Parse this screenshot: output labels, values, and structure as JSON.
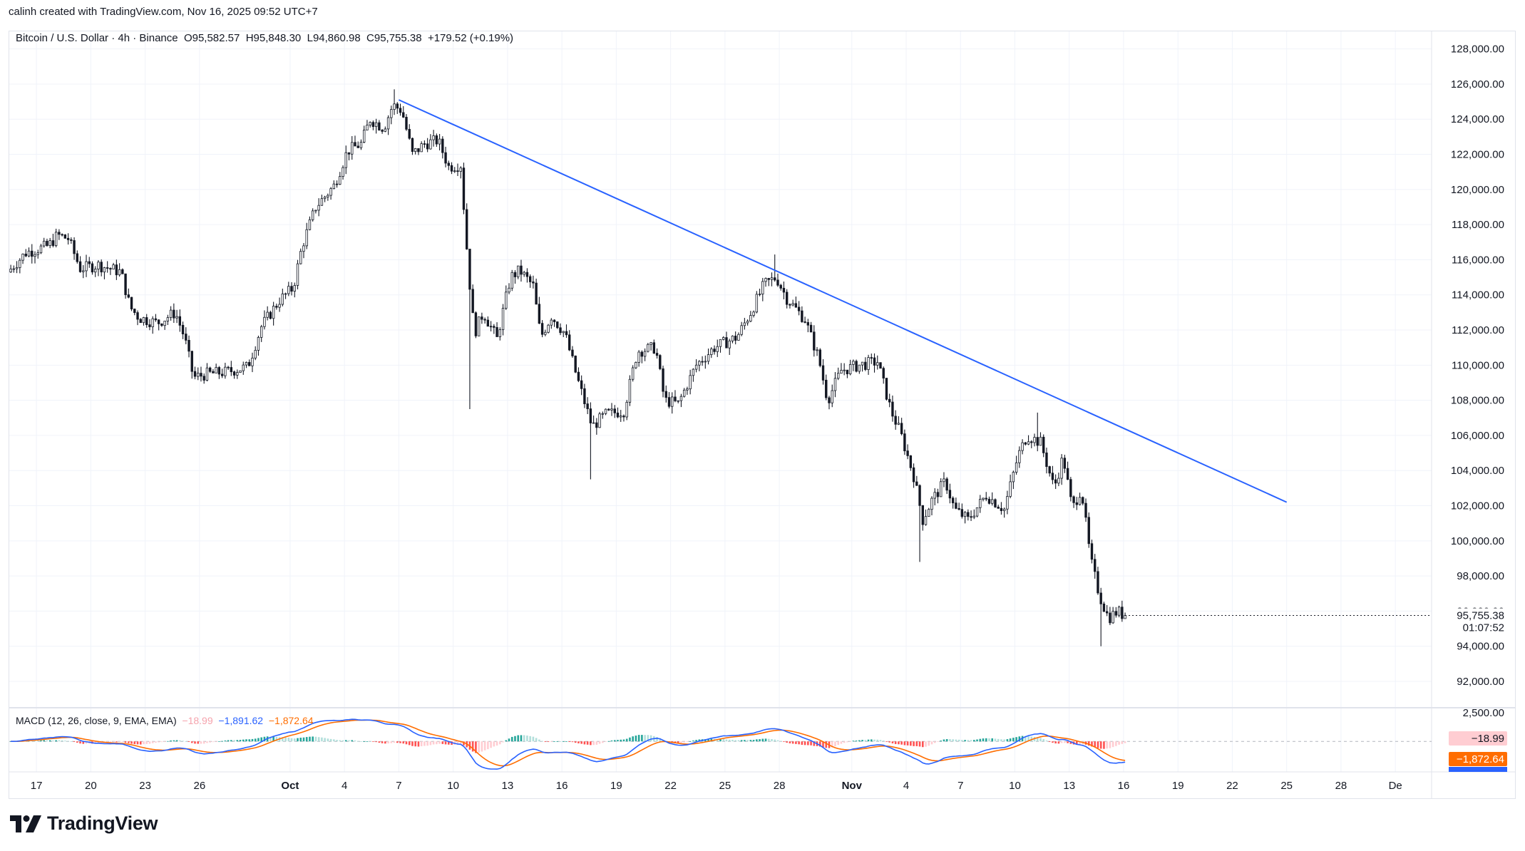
{
  "header": {
    "attribution": "calinh created with TradingView.com, Nov 16, 2025 09:52 UTC+7"
  },
  "legend": {
    "symbol": "Bitcoin / U.S. Dollar · 4h · Binance",
    "open": "O95,582.57",
    "high": "H95,848.30",
    "low": "L94,860.98",
    "close": "C95,755.38",
    "change": "+179.52 (+0.19%)"
  },
  "macd_legend": {
    "label": "MACD (12, 26, close, 9, EMA, EMA)",
    "histogram": "−18.99",
    "macd": "−1,891.62",
    "signal": "−1,872.64"
  },
  "price_badge": {
    "price": "95,755.38",
    "countdown": "01:07:52"
  },
  "macd_badges": {
    "histogram": "−18.99",
    "signal": "−1,872.64",
    "macd": "−1,891.62"
  },
  "colors": {
    "candle": "#131722",
    "trendline": "#2962ff",
    "macd_line": "#2962ff",
    "signal_line": "#ff6d00",
    "hist_pos_strong": "#26a69a",
    "hist_pos_weak": "#b2dfdb",
    "hist_neg_strong": "#ff5252",
    "hist_neg_weak": "#ffcdd2",
    "grid": "#f0f3fa"
  },
  "logo": {
    "text": "TradingView"
  },
  "chart_data": {
    "type": "candlestick",
    "symbol": "Bitcoin / U.S. Dollar",
    "interval": "4h",
    "y_axis": {
      "range": [
        90500,
        129000
      ],
      "ticks": [
        92000,
        94000,
        96000,
        98000,
        100000,
        102000,
        104000,
        106000,
        108000,
        110000,
        112000,
        114000,
        116000,
        118000,
        120000,
        122000,
        124000,
        126000,
        128000
      ],
      "tick_labels": [
        "92,000.00",
        "94,000.00",
        "96,000.00",
        "98,000.00",
        "100,000.00",
        "102,000.00",
        "104,000.00",
        "106,000.00",
        "108,000.00",
        "110,000.00",
        "112,000.00",
        "114,000.00",
        "116,000.00",
        "118,000.00",
        "120,000.00",
        "122,000.00",
        "124,000.00",
        "126,000.00",
        "128,000.00"
      ]
    },
    "x_axis": {
      "range": [
        "2025-09-15T12:00",
        "2025-12-03T00:00"
      ],
      "ticks": [
        {
          "date": "2025-09-17",
          "label": "17"
        },
        {
          "date": "2025-09-20",
          "label": "20"
        },
        {
          "date": "2025-09-23",
          "label": "23"
        },
        {
          "date": "2025-09-26",
          "label": "26"
        },
        {
          "date": "2025-10-01",
          "label": "Oct"
        },
        {
          "date": "2025-10-04",
          "label": "4"
        },
        {
          "date": "2025-10-07",
          "label": "7"
        },
        {
          "date": "2025-10-10",
          "label": "10"
        },
        {
          "date": "2025-10-13",
          "label": "13"
        },
        {
          "date": "2025-10-16",
          "label": "16"
        },
        {
          "date": "2025-10-19",
          "label": "19"
        },
        {
          "date": "2025-10-22",
          "label": "22"
        },
        {
          "date": "2025-10-25",
          "label": "25"
        },
        {
          "date": "2025-10-28",
          "label": "28"
        },
        {
          "date": "2025-11-01",
          "label": "Nov"
        },
        {
          "date": "2025-11-04",
          "label": "4"
        },
        {
          "date": "2025-11-07",
          "label": "7"
        },
        {
          "date": "2025-11-10",
          "label": "10"
        },
        {
          "date": "2025-11-13",
          "label": "13"
        },
        {
          "date": "2025-11-16",
          "label": "16"
        },
        {
          "date": "2025-11-19",
          "label": "19"
        },
        {
          "date": "2025-11-22",
          "label": "22"
        },
        {
          "date": "2025-11-25",
          "label": "25"
        },
        {
          "date": "2025-11-28",
          "label": "28"
        },
        {
          "date": "2025-12-01",
          "label": "De"
        }
      ]
    },
    "price_path": [
      {
        "t": "2025-09-15T12:00",
        "p": 115300
      },
      {
        "t": "2025-09-16T12:00",
        "p": 116400
      },
      {
        "t": "2025-09-17T18:00",
        "p": 116800
      },
      {
        "t": "2025-09-18T06:00",
        "p": 117400
      },
      {
        "t": "2025-09-18T20:00",
        "p": 117200
      },
      {
        "t": "2025-09-19T12:00",
        "p": 115500
      },
      {
        "t": "2025-09-20T12:00",
        "p": 115700
      },
      {
        "t": "2025-09-21T18:00",
        "p": 115300
      },
      {
        "t": "2025-09-22T06:00",
        "p": 113300
      },
      {
        "t": "2025-09-22T18:00",
        "p": 112700
      },
      {
        "t": "2025-09-23T18:00",
        "p": 112400
      },
      {
        "t": "2025-09-24T18:00",
        "p": 113000
      },
      {
        "t": "2025-09-25T06:00",
        "p": 111600
      },
      {
        "t": "2025-09-25T18:00",
        "p": 109300
      },
      {
        "t": "2025-09-26T12:00",
        "p": 109500
      },
      {
        "t": "2025-09-27T12:00",
        "p": 109600
      },
      {
        "t": "2025-09-28T18:00",
        "p": 109900
      },
      {
        "t": "2025-09-29T12:00",
        "p": 112200
      },
      {
        "t": "2025-09-30T12:00",
        "p": 113700
      },
      {
        "t": "2025-10-01T06:00",
        "p": 114400
      },
      {
        "t": "2025-10-01T18:00",
        "p": 116800
      },
      {
        "t": "2025-10-02T12:00",
        "p": 119000
      },
      {
        "t": "2025-10-03T12:00",
        "p": 120200
      },
      {
        "t": "2025-10-04T06:00",
        "p": 122200
      },
      {
        "t": "2025-10-05T00:00",
        "p": 122600
      },
      {
        "t": "2025-10-05T12:00",
        "p": 124000
      },
      {
        "t": "2025-10-06T06:00",
        "p": 123500
      },
      {
        "t": "2025-10-06T18:00",
        "p": 124800
      },
      {
        "t": "2025-10-07T06:00",
        "p": 124500
      },
      {
        "t": "2025-10-07T20:00",
        "p": 122000
      },
      {
        "t": "2025-10-08T12:00",
        "p": 122600
      },
      {
        "t": "2025-10-09T06:00",
        "p": 122800
      },
      {
        "t": "2025-10-09T20:00",
        "p": 121300
      },
      {
        "t": "2025-10-10T12:00",
        "p": 121400
      },
      {
        "t": "2025-10-10T22:00",
        "p": 115500
      },
      {
        "t": "2025-10-11T06:00",
        "p": 111800
      },
      {
        "t": "2025-10-11T18:00",
        "p": 113000
      },
      {
        "t": "2025-10-12T12:00",
        "p": 111500
      },
      {
        "t": "2025-10-13T06:00",
        "p": 115000
      },
      {
        "t": "2025-10-13T18:00",
        "p": 115400
      },
      {
        "t": "2025-10-14T12:00",
        "p": 114500
      },
      {
        "t": "2025-10-14T22:00",
        "p": 111600
      },
      {
        "t": "2025-10-15T12:00",
        "p": 112800
      },
      {
        "t": "2025-10-16T06:00",
        "p": 111800
      },
      {
        "t": "2025-10-16T22:00",
        "p": 109300
      },
      {
        "t": "2025-10-17T18:00",
        "p": 106500
      },
      {
        "t": "2025-10-18T12:00",
        "p": 107200
      },
      {
        "t": "2025-10-19T12:00",
        "p": 107400
      },
      {
        "t": "2025-10-20T06:00",
        "p": 110800
      },
      {
        "t": "2025-10-21T06:00",
        "p": 111000
      },
      {
        "t": "2025-10-21T18:00",
        "p": 108000
      },
      {
        "t": "2025-10-22T12:00",
        "p": 107800
      },
      {
        "t": "2025-10-23T12:00",
        "p": 110000
      },
      {
        "t": "2025-10-24T12:00",
        "p": 111000
      },
      {
        "t": "2025-10-25T18:00",
        "p": 111600
      },
      {
        "t": "2025-10-26T12:00",
        "p": 113000
      },
      {
        "t": "2025-10-27T06:00",
        "p": 114600
      },
      {
        "t": "2025-10-27T22:00",
        "p": 115000
      },
      {
        "t": "2025-10-28T12:00",
        "p": 113800
      },
      {
        "t": "2025-10-29T12:00",
        "p": 112600
      },
      {
        "t": "2025-10-30T06:00",
        "p": 110400
      },
      {
        "t": "2025-10-30T18:00",
        "p": 108000
      },
      {
        "t": "2025-10-31T12:00",
        "p": 109700
      },
      {
        "t": "2025-11-01T12:00",
        "p": 110000
      },
      {
        "t": "2025-11-02T12:00",
        "p": 110200
      },
      {
        "t": "2025-11-03T06:00",
        "p": 107400
      },
      {
        "t": "2025-11-03T18:00",
        "p": 106200
      },
      {
        "t": "2025-11-04T12:00",
        "p": 103700
      },
      {
        "t": "2025-11-05T00:00",
        "p": 101200
      },
      {
        "t": "2025-11-05T12:00",
        "p": 102300
      },
      {
        "t": "2025-11-06T06:00",
        "p": 103400
      },
      {
        "t": "2025-11-06T18:00",
        "p": 101800
      },
      {
        "t": "2025-11-07T12:00",
        "p": 101200
      },
      {
        "t": "2025-11-08T12:00",
        "p": 102600
      },
      {
        "t": "2025-11-09T12:00",
        "p": 101800
      },
      {
        "t": "2025-11-10T06:00",
        "p": 104800
      },
      {
        "t": "2025-11-10T18:00",
        "p": 106000
      },
      {
        "t": "2025-11-11T12:00",
        "p": 105600
      },
      {
        "t": "2025-11-12T06:00",
        "p": 103000
      },
      {
        "t": "2025-11-12T18:00",
        "p": 104800
      },
      {
        "t": "2025-11-13T06:00",
        "p": 101800
      },
      {
        "t": "2025-11-13T18:00",
        "p": 103000
      },
      {
        "t": "2025-11-14T06:00",
        "p": 99000
      },
      {
        "t": "2025-11-14T18:00",
        "p": 96900
      },
      {
        "t": "2025-11-15T06:00",
        "p": 95600
      },
      {
        "t": "2025-11-15T18:00",
        "p": 96000
      },
      {
        "t": "2025-11-16T02:00",
        "p": 95755.38
      }
    ],
    "wick_extremes": [
      {
        "t": "2025-10-06T18:00",
        "type": "high",
        "price": 125700
      },
      {
        "t": "2025-10-10T22:00",
        "type": "low",
        "price": 107500
      },
      {
        "t": "2025-10-17T12:00",
        "type": "low",
        "price": 103500
      },
      {
        "t": "2025-10-27T18:00",
        "type": "high",
        "price": 116300
      },
      {
        "t": "2025-11-04T18:00",
        "type": "low",
        "price": 98800
      },
      {
        "t": "2025-11-11T06:00",
        "type": "high",
        "price": 107300
      },
      {
        "t": "2025-11-14T18:00",
        "type": "low",
        "price": 94000
      }
    ],
    "trendline": {
      "start": {
        "t": "2025-10-07T00:00",
        "price": 125100
      },
      "end": {
        "t": "2025-11-25T00:00",
        "price": 102200
      }
    },
    "last_price": 95755.38,
    "macd": {
      "params": "12, 26, close, 9, EMA, EMA",
      "histogram_last": -18.99,
      "macd_last": -1891.62,
      "signal_last": -1872.64,
      "y_range": [
        -3000,
        3100
      ],
      "axis_tick": {
        "value": 2500,
        "label": "2,500.00"
      }
    }
  }
}
